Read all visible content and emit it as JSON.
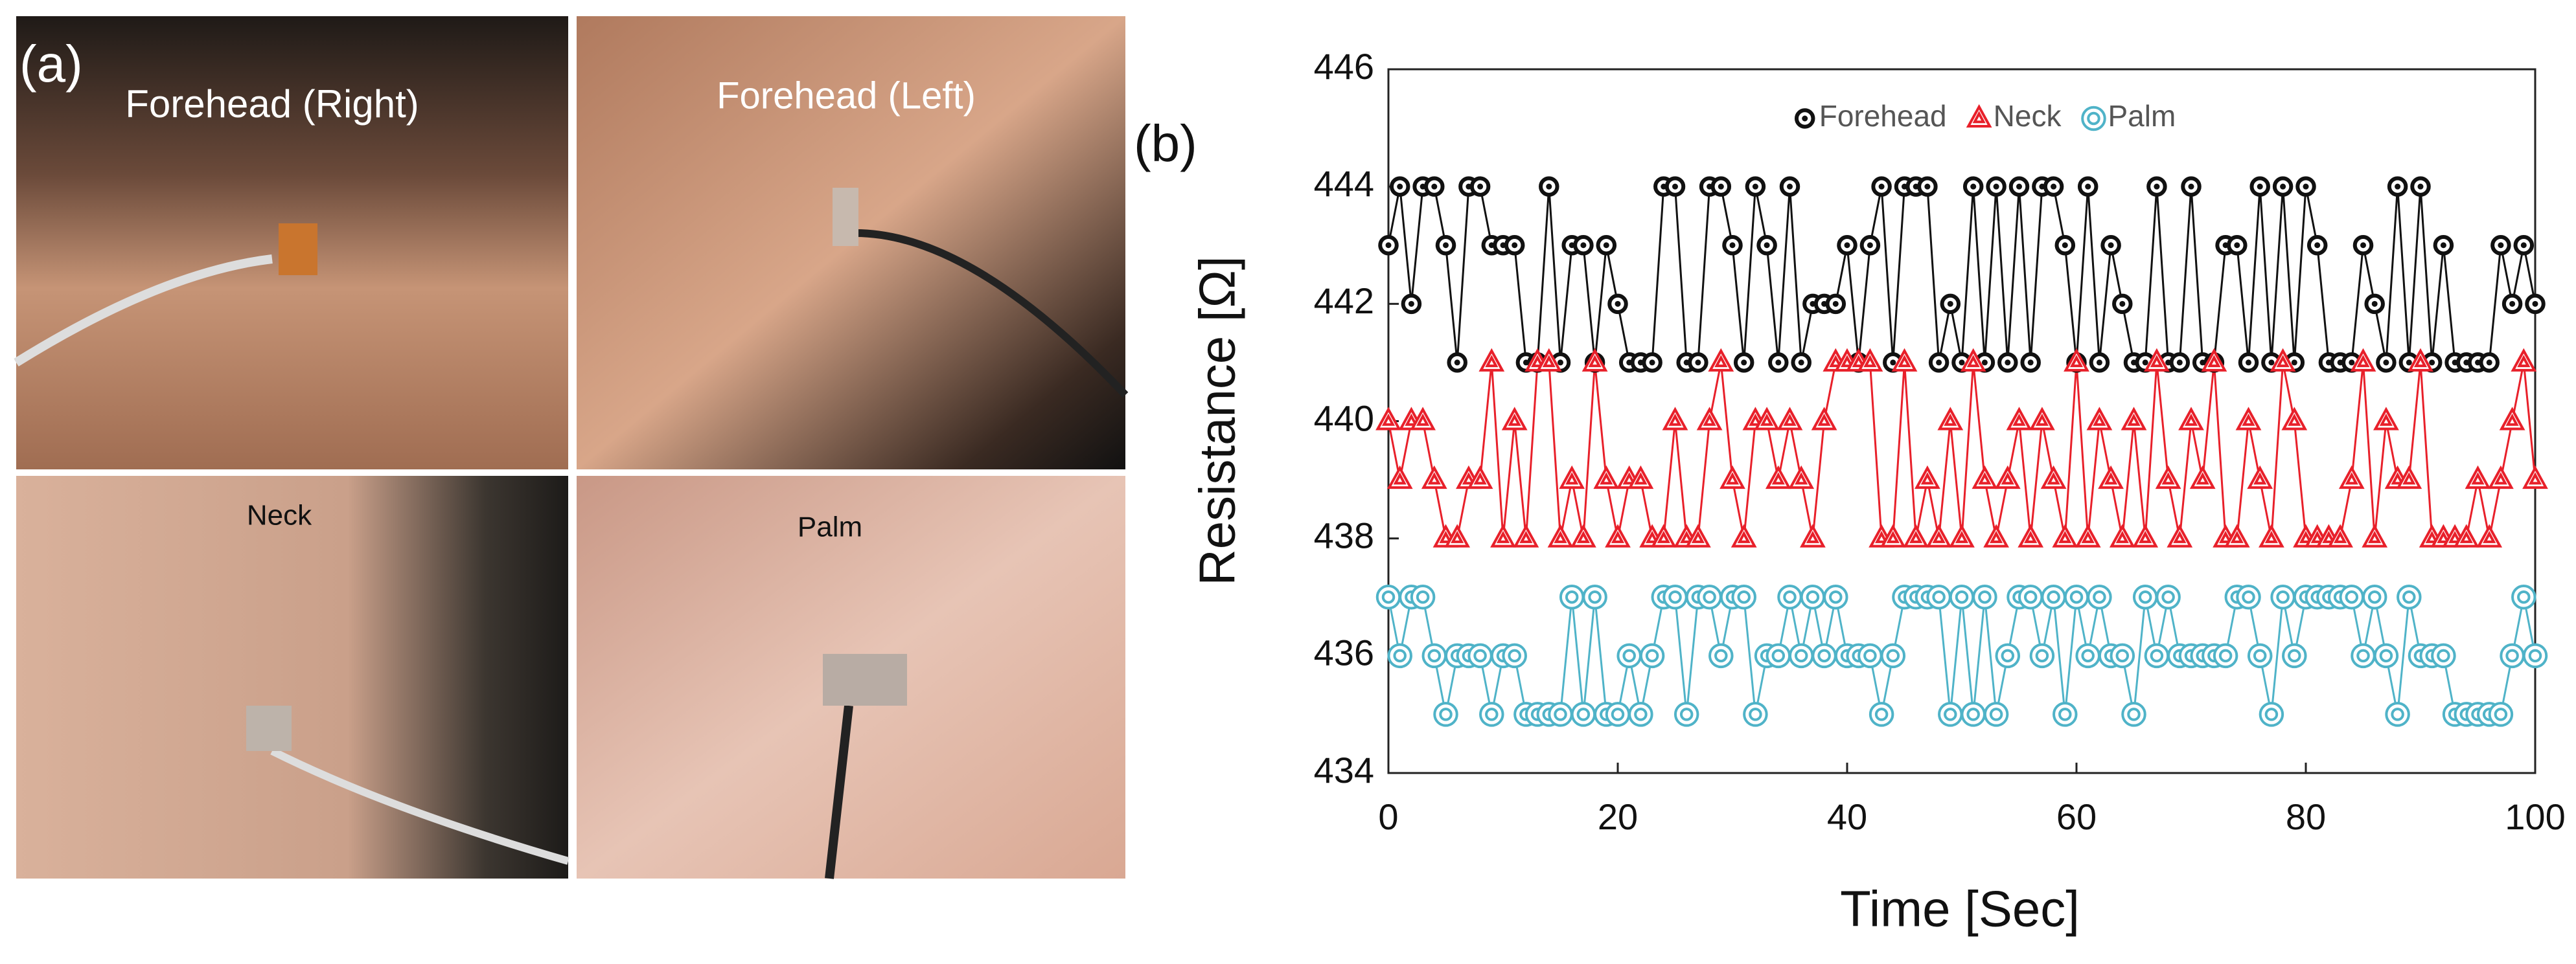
{
  "figure": {
    "label_a": "(a)",
    "label_b": "(b)",
    "photos": [
      "Forehead (Right)",
      "Forehead (Left)",
      "Neck",
      "Palm"
    ]
  },
  "chart_data": {
    "type": "line",
    "x_label": "Time [Sec]",
    "y_label": "Resistance [Ω]",
    "x": [
      0,
      1,
      2,
      3,
      4,
      5,
      6,
      7,
      8,
      9,
      10,
      11,
      12,
      13,
      14,
      15,
      16,
      17,
      18,
      19,
      20,
      21,
      22,
      23,
      24,
      25,
      26,
      27,
      28,
      29,
      30,
      31,
      32,
      33,
      34,
      35,
      36,
      37,
      38,
      39,
      40,
      41,
      42,
      43,
      44,
      45,
      46,
      47,
      48,
      49,
      50,
      51,
      52,
      53,
      54,
      55,
      56,
      57,
      58,
      59,
      60,
      61,
      62,
      63,
      64,
      65,
      66,
      67,
      68,
      69,
      70,
      71,
      72,
      73,
      74,
      75,
      76,
      77,
      78,
      79,
      80,
      81,
      82,
      83,
      84,
      85,
      86,
      87,
      88,
      89,
      90,
      91,
      92,
      93,
      94,
      95,
      96,
      97,
      98,
      99,
      100
    ],
    "series": [
      {
        "name": "Forehead",
        "color": "#111111",
        "marker": "circle",
        "values": [
          443,
          444,
          442,
          444,
          444,
          443,
          441,
          444,
          444,
          443,
          443,
          443,
          441,
          441,
          444,
          441,
          443,
          443,
          441,
          443,
          442,
          441,
          441,
          441,
          444,
          444,
          441,
          441,
          444,
          444,
          443,
          441,
          444,
          443,
          441,
          444,
          441,
          442,
          442,
          442,
          443,
          441,
          443,
          444,
          441,
          444,
          444,
          444,
          441,
          442,
          441,
          444,
          441,
          444,
          441,
          444,
          441,
          444,
          444,
          443,
          441,
          444,
          441,
          443,
          442,
          441,
          441,
          444,
          441,
          441,
          444,
          441,
          441,
          443,
          443,
          441,
          444,
          441,
          444,
          441,
          444,
          443,
          441,
          441,
          441,
          443,
          442,
          441,
          444,
          441,
          444,
          441,
          443,
          441,
          441,
          441,
          441,
          443,
          442,
          443,
          442
        ]
      },
      {
        "name": "Neck",
        "color": "#e8202a",
        "marker": "triangle",
        "values": [
          440,
          439,
          440,
          440,
          439,
          438,
          438,
          439,
          439,
          441,
          438,
          440,
          438,
          441,
          441,
          438,
          439,
          438,
          441,
          439,
          438,
          439,
          439,
          438,
          438,
          440,
          438,
          438,
          440,
          441,
          439,
          438,
          440,
          440,
          439,
          440,
          439,
          438,
          440,
          441,
          441,
          441,
          441,
          438,
          438,
          441,
          438,
          439,
          438,
          440,
          438,
          441,
          439,
          438,
          439,
          440,
          438,
          440,
          439,
          438,
          441,
          438,
          440,
          439,
          438,
          440,
          438,
          441,
          439,
          438,
          440,
          439,
          441,
          438,
          438,
          440,
          439,
          438,
          441,
          440,
          438,
          438,
          438,
          438,
          439,
          441,
          438,
          440,
          439,
          439,
          441,
          438,
          438,
          438,
          438,
          439,
          438,
          439,
          440,
          441,
          439
        ]
      },
      {
        "name": "Palm",
        "color": "#4fb3c8",
        "marker": "double-circle",
        "values": [
          437,
          436,
          437,
          437,
          436,
          435,
          436,
          436,
          436,
          435,
          436,
          436,
          435,
          435,
          435,
          435,
          437,
          435,
          437,
          435,
          435,
          436,
          435,
          436,
          437,
          437,
          435,
          437,
          437,
          436,
          437,
          437,
          435,
          436,
          436,
          437,
          436,
          437,
          436,
          437,
          436,
          436,
          436,
          435,
          436,
          437,
          437,
          437,
          437,
          435,
          437,
          435,
          437,
          435,
          436,
          437,
          437,
          436,
          437,
          435,
          437,
          436,
          437,
          436,
          436,
          435,
          437,
          436,
          437,
          436,
          436,
          436,
          436,
          436,
          437,
          437,
          436,
          435,
          437,
          436,
          437,
          437,
          437,
          437,
          437,
          436,
          437,
          436,
          435,
          437,
          436,
          436,
          436,
          435,
          435,
          435,
          435,
          435,
          436,
          437,
          436
        ]
      }
    ],
    "xlim": [
      0,
      100
    ],
    "xticks": [
      0,
      20,
      40,
      60,
      80,
      100
    ],
    "ylim": [
      434,
      446
    ],
    "yticks": [
      434,
      436,
      438,
      440,
      442,
      444,
      446
    ],
    "grid": false,
    "legend": "top"
  }
}
